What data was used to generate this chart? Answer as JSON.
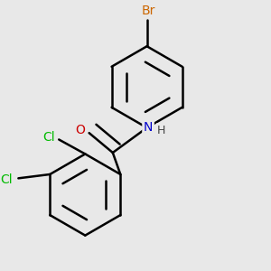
{
  "background_color": "#e8e8e8",
  "bond_color": "#000000",
  "bond_width": 1.8,
  "atom_colors": {
    "Br": "#cc6600",
    "Cl": "#00bb00",
    "N": "#0000cc",
    "O": "#cc0000",
    "H": "#444444",
    "C": "#000000"
  },
  "font_size": 10,
  "figsize": [
    3.0,
    3.0
  ],
  "dpi": 100
}
